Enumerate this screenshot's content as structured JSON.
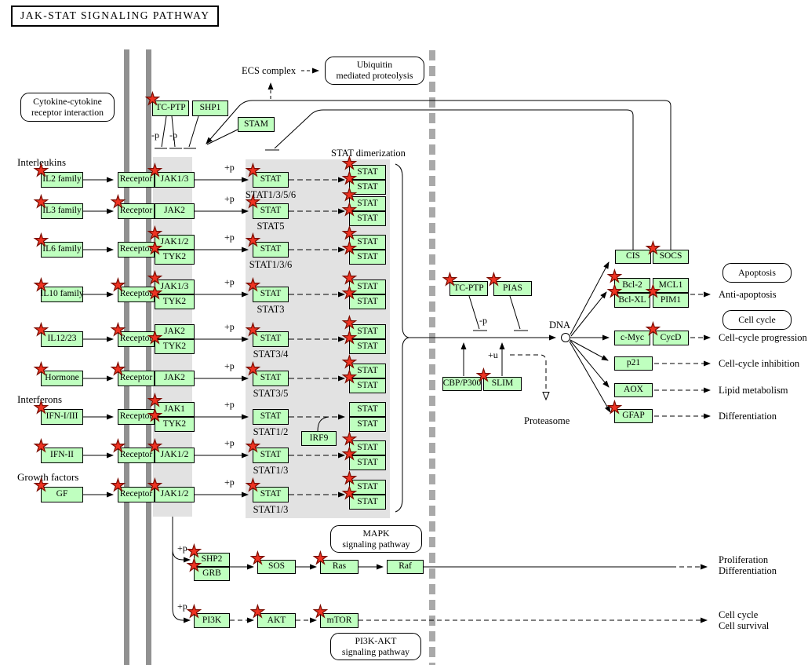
{
  "title": "JAK-STAT SIGNALING PATHWAY",
  "colors": {
    "gene_box": "#bfffbf",
    "star": "#ee3322",
    "membrane": "#919191",
    "nuclear_membrane": "#a9a9a9",
    "region_bg": "#e2e2e2"
  },
  "nodes": [
    {
      "id": "tcptp-top",
      "label": "TC-PTP",
      "type": "gene",
      "starred": true
    },
    {
      "id": "shp1",
      "label": "SHP1",
      "type": "gene",
      "starred": false
    },
    {
      "id": "stam",
      "label": "STAM",
      "type": "gene",
      "starred": false
    },
    {
      "id": "lig-il2",
      "label": "IL2 family",
      "type": "gene",
      "starred": true
    },
    {
      "id": "lig-il3",
      "label": "IL3 family",
      "type": "gene",
      "starred": true
    },
    {
      "id": "lig-il6",
      "label": "IL6 family",
      "type": "gene",
      "starred": true
    },
    {
      "id": "lig-il10",
      "label": "IL10 family",
      "type": "gene",
      "starred": true
    },
    {
      "id": "lig-il1223",
      "label": "IL12/23",
      "type": "gene",
      "starred": true
    },
    {
      "id": "lig-hormone",
      "label": "Hormone",
      "type": "gene",
      "starred": true
    },
    {
      "id": "lig-ifn13",
      "label": "IFN-I/III",
      "type": "gene",
      "starred": true
    },
    {
      "id": "lig-ifn2",
      "label": "IFN-II",
      "type": "gene",
      "starred": true
    },
    {
      "id": "lig-gf",
      "label": "GF",
      "type": "gene",
      "starred": true
    },
    {
      "id": "rec1",
      "label": "Receptor",
      "type": "gene",
      "starred": false
    },
    {
      "id": "rec2",
      "label": "Receptor",
      "type": "gene",
      "starred": true
    },
    {
      "id": "rec3",
      "label": "Receptor",
      "type": "gene",
      "starred": false
    },
    {
      "id": "rec4",
      "label": "Receptor",
      "type": "gene",
      "starred": true
    },
    {
      "id": "rec5",
      "label": "Receptor",
      "type": "gene",
      "starred": true
    },
    {
      "id": "rec6",
      "label": "Receptor",
      "type": "gene",
      "starred": true
    },
    {
      "id": "rec7",
      "label": "Receptor",
      "type": "gene",
      "starred": false
    },
    {
      "id": "rec8",
      "label": "Receptor",
      "type": "gene",
      "starred": true
    },
    {
      "id": "rec9",
      "label": "Receptor",
      "type": "gene",
      "starred": true
    },
    {
      "id": "jak1",
      "label": "JAK1/3",
      "type": "gene",
      "starred": true
    },
    {
      "id": "jak2",
      "label": "JAK2",
      "type": "gene",
      "starred": false
    },
    {
      "id": "jak3a",
      "label": "JAK1/2",
      "type": "gene",
      "starred": true
    },
    {
      "id": "jak3b",
      "label": "TYK2",
      "type": "gene",
      "starred": true
    },
    {
      "id": "jak4a",
      "label": "JAK1/3",
      "type": "gene",
      "starred": true
    },
    {
      "id": "jak4b",
      "label": "TYK2",
      "type": "gene",
      "starred": true
    },
    {
      "id": "jak5a",
      "label": "JAK2",
      "type": "gene",
      "starred": false
    },
    {
      "id": "jak5b",
      "label": "TYK2",
      "type": "gene",
      "starred": true
    },
    {
      "id": "jak6",
      "label": "JAK2",
      "type": "gene",
      "starred": false
    },
    {
      "id": "jak7a",
      "label": "JAK1",
      "type": "gene",
      "starred": true
    },
    {
      "id": "jak7b",
      "label": "TYK2",
      "type": "gene",
      "starred": true
    },
    {
      "id": "jak8",
      "label": "JAK1/2",
      "type": "gene",
      "starred": true
    },
    {
      "id": "jak9",
      "label": "JAK1/2",
      "type": "gene",
      "starred": true
    },
    {
      "id": "stat1",
      "label": "STAT",
      "type": "gene",
      "starred": true
    },
    {
      "id": "stat2",
      "label": "STAT",
      "type": "gene",
      "starred": true
    },
    {
      "id": "stat3",
      "label": "STAT",
      "type": "gene",
      "starred": true
    },
    {
      "id": "stat4",
      "label": "STAT",
      "type": "gene",
      "starred": true
    },
    {
      "id": "stat5",
      "label": "STAT",
      "type": "gene",
      "starred": true
    },
    {
      "id": "stat6",
      "label": "STAT",
      "type": "gene",
      "starred": true
    },
    {
      "id": "stat7",
      "label": "STAT",
      "type": "gene",
      "starred": false
    },
    {
      "id": "stat8",
      "label": "STAT",
      "type": "gene",
      "starred": true
    },
    {
      "id": "stat9",
      "label": "STAT",
      "type": "gene",
      "starred": true
    },
    {
      "id": "dim1a",
      "label": "STAT",
      "type": "gene",
      "starred": true
    },
    {
      "id": "dim1b",
      "label": "STAT",
      "type": "gene",
      "starred": true
    },
    {
      "id": "dim2a",
      "label": "STAT",
      "type": "gene",
      "starred": true
    },
    {
      "id": "dim2b",
      "label": "STAT",
      "type": "gene",
      "starred": true
    },
    {
      "id": "dim3a",
      "label": "STAT",
      "type": "gene",
      "starred": true
    },
    {
      "id": "dim3b",
      "label": "STAT",
      "type": "gene",
      "starred": true
    },
    {
      "id": "dim4a",
      "label": "STAT",
      "type": "gene",
      "starred": true
    },
    {
      "id": "dim4b",
      "label": "STAT",
      "type": "gene",
      "starred": true
    },
    {
      "id": "dim5a",
      "label": "STAT",
      "type": "gene",
      "starred": true
    },
    {
      "id": "dim5b",
      "label": "STAT",
      "type": "gene",
      "starred": true
    },
    {
      "id": "dim6a",
      "label": "STAT",
      "type": "gene",
      "starred": true
    },
    {
      "id": "dim6b",
      "label": "STAT",
      "type": "gene",
      "starred": true
    },
    {
      "id": "dim7a",
      "label": "STAT",
      "type": "gene",
      "starred": false
    },
    {
      "id": "dim7b",
      "label": "STAT",
      "type": "gene",
      "starred": false
    },
    {
      "id": "dim8a",
      "label": "STAT",
      "type": "gene",
      "starred": true
    },
    {
      "id": "dim8b",
      "label": "STAT",
      "type": "gene",
      "starred": true
    },
    {
      "id": "dim9a",
      "label": "STAT",
      "type": "gene",
      "starred": true
    },
    {
      "id": "dim9b",
      "label": "STAT",
      "type": "gene",
      "starred": true
    },
    {
      "id": "irf9",
      "label": "IRF9",
      "type": "gene",
      "starred": false
    },
    {
      "id": "tcptp-mid",
      "label": "TC-PTP",
      "type": "gene",
      "starred": true
    },
    {
      "id": "pias",
      "label": "PIAS",
      "type": "gene",
      "starred": true
    },
    {
      "id": "cbp",
      "label": "CBP/P300",
      "type": "gene",
      "starred": false
    },
    {
      "id": "slim",
      "label": "SLIM",
      "type": "gene",
      "starred": true
    },
    {
      "id": "cis",
      "label": "CIS",
      "type": "gene",
      "starred": false
    },
    {
      "id": "socs",
      "label": "SOCS",
      "type": "gene",
      "starred": true
    },
    {
      "id": "bcl2",
      "label": "Bcl-2",
      "type": "gene",
      "starred": true
    },
    {
      "id": "mcl1",
      "label": "MCL1",
      "type": "gene",
      "starred": false
    },
    {
      "id": "bclxl",
      "label": "Bcl-XL",
      "type": "gene",
      "starred": true
    },
    {
      "id": "pim1",
      "label": "PIM1",
      "type": "gene",
      "starred": true
    },
    {
      "id": "cmyc",
      "label": "c-Myc",
      "type": "gene",
      "starred": false
    },
    {
      "id": "cycd",
      "label": "CycD",
      "type": "gene",
      "starred": true
    },
    {
      "id": "p21",
      "label": "p21",
      "type": "gene",
      "starred": false
    },
    {
      "id": "aox",
      "label": "AOX",
      "type": "gene",
      "starred": false
    },
    {
      "id": "gfap",
      "label": "GFAP",
      "type": "gene",
      "starred": true
    },
    {
      "id": "shp2",
      "label": "SHP2",
      "type": "gene",
      "starred": true
    },
    {
      "id": "grb",
      "label": "GRB",
      "type": "gene",
      "starred": true
    },
    {
      "id": "sos",
      "label": "SOS",
      "type": "gene",
      "starred": true
    },
    {
      "id": "ras",
      "label": "Ras",
      "type": "gene",
      "starred": true
    },
    {
      "id": "raf",
      "label": "Raf",
      "type": "gene",
      "starred": false
    },
    {
      "id": "pi3k",
      "label": "PI3K",
      "type": "gene",
      "starred": true
    },
    {
      "id": "akt",
      "label": "AKT",
      "type": "gene",
      "starred": true
    },
    {
      "id": "mtor",
      "label": "mTOR",
      "type": "gene",
      "starred": true
    },
    {
      "id": "cyto-interaction",
      "label": "Cytokine-cytokine\nreceptor interaction",
      "type": "pathway",
      "starred": false
    },
    {
      "id": "ub-proteolysis",
      "label": "Ubiquitin\nmediated proteolysis",
      "type": "pathway",
      "starred": false
    },
    {
      "id": "mapk-ref",
      "label": "MAPK\nsignaling pathway",
      "type": "pathway",
      "starred": false
    },
    {
      "id": "pi3kakt-ref",
      "label": "PI3K-AKT\nsignaling pathway",
      "type": "pathway",
      "starred": false
    },
    {
      "id": "apoptosis-ref",
      "label": "Apoptosis",
      "type": "pathway",
      "starred": false
    },
    {
      "id": "cellcycle-ref",
      "label": "Cell cycle",
      "type": "pathway",
      "starred": false
    }
  ],
  "labels": [
    {
      "id": "interleukins",
      "text": "Interleukins"
    },
    {
      "id": "interferons",
      "text": "Interferons"
    },
    {
      "id": "growth-factors",
      "text": "Growth factors"
    },
    {
      "id": "stat-dimerization",
      "text": "STAT dimerization"
    },
    {
      "id": "ecs-complex",
      "text": "ECS complex"
    },
    {
      "id": "dna",
      "text": "DNA"
    },
    {
      "id": "proteasome",
      "text": "Proteasome"
    },
    {
      "id": "anti-apoptosis",
      "text": "Anti-apoptosis"
    },
    {
      "id": "cc-progression",
      "text": "Cell-cycle progression"
    },
    {
      "id": "cc-inhibition",
      "text": "Cell-cycle inhibition"
    },
    {
      "id": "lipid-metabolism",
      "text": "Lipid metabolism"
    },
    {
      "id": "differentiation",
      "text": "Differentiation"
    },
    {
      "id": "proliferation",
      "text": "Proliferation\nDifferentiation"
    },
    {
      "id": "cellcycle-survival",
      "text": "Cell cycle\nCell survival"
    },
    {
      "id": "statlab1",
      "text": "STAT1/3/5/6"
    },
    {
      "id": "statlab2",
      "text": "STAT5"
    },
    {
      "id": "statlab3",
      "text": "STAT1/3/6"
    },
    {
      "id": "statlab4",
      "text": "STAT3"
    },
    {
      "id": "statlab5",
      "text": "STAT3/4"
    },
    {
      "id": "statlab6",
      "text": "STAT3/5"
    },
    {
      "id": "statlab7",
      "text": "STAT1/2"
    },
    {
      "id": "statlab8",
      "text": "STAT1/3"
    },
    {
      "id": "statlab9",
      "text": "STAT1/3"
    },
    {
      "id": "pp1",
      "text": "+p"
    },
    {
      "id": "pp2",
      "text": "+p"
    },
    {
      "id": "pp3",
      "text": "+p"
    },
    {
      "id": "pp4",
      "text": "+p"
    },
    {
      "id": "pp5",
      "text": "+p"
    },
    {
      "id": "pp6",
      "text": "+p"
    },
    {
      "id": "pp7",
      "text": "+p"
    },
    {
      "id": "pp8",
      "text": "+p"
    },
    {
      "id": "pp9",
      "text": "+p"
    },
    {
      "id": "pp-shp2",
      "text": "+p"
    },
    {
      "id": "pp-pi3k",
      "text": "+p"
    },
    {
      "id": "mp1",
      "text": "-p"
    },
    {
      "id": "mp2",
      "text": "-p"
    },
    {
      "id": "mp3",
      "text": "-p"
    },
    {
      "id": "pu",
      "text": "+u"
    }
  ]
}
